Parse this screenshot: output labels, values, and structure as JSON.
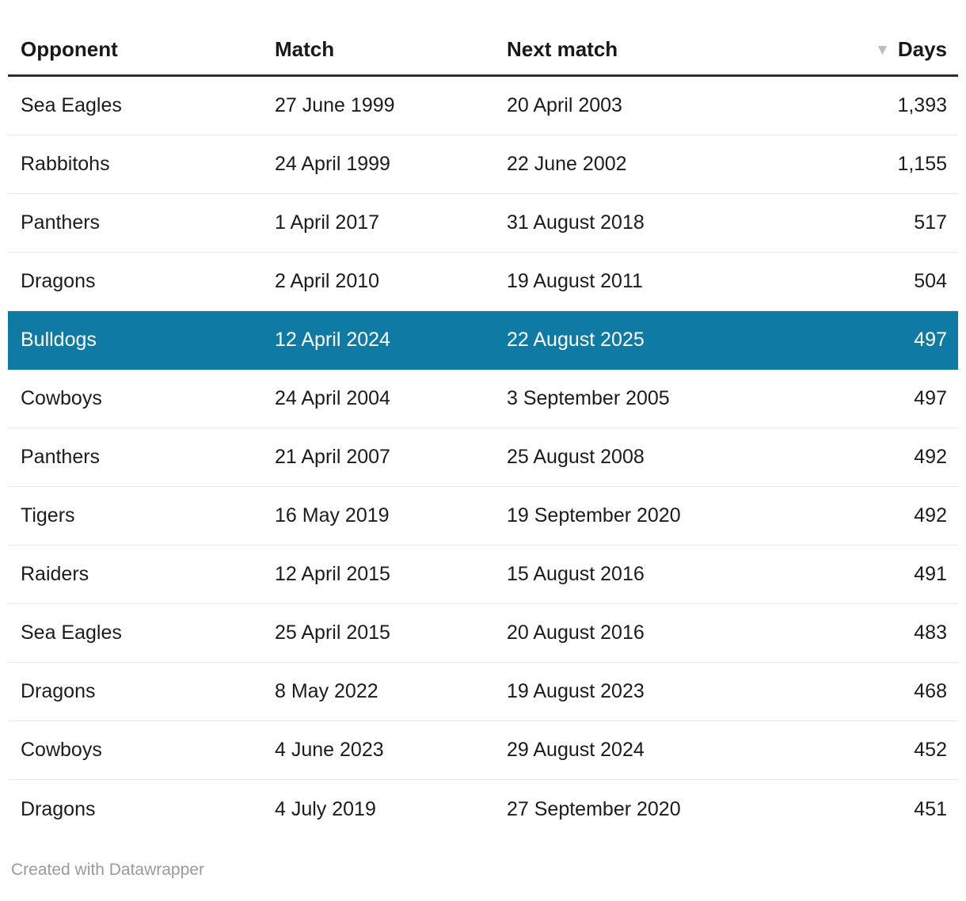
{
  "chart_data": {
    "type": "table",
    "columns": [
      "Opponent",
      "Match",
      "Next match",
      "Days"
    ],
    "sort": {
      "column": "Days",
      "direction": "desc"
    },
    "rows": [
      {
        "opponent": "Sea Eagles",
        "match": "27 June 1999",
        "next_match": "20 April 2003",
        "days": "1,393",
        "highlighted": false
      },
      {
        "opponent": "Rabbitohs",
        "match": "24 April 1999",
        "next_match": "22 June 2002",
        "days": "1,155",
        "highlighted": false
      },
      {
        "opponent": "Panthers",
        "match": "1 April 2017",
        "next_match": "31 August 2018",
        "days": "517",
        "highlighted": false
      },
      {
        "opponent": "Dragons",
        "match": "2 April 2010",
        "next_match": "19 August 2011",
        "days": "504",
        "highlighted": false
      },
      {
        "opponent": "Bulldogs",
        "match": "12 April 2024",
        "next_match": "22 August 2025",
        "days": "497",
        "highlighted": true
      },
      {
        "opponent": "Cowboys",
        "match": "24 April 2004",
        "next_match": "3 September 2005",
        "days": "497",
        "highlighted": false
      },
      {
        "opponent": "Panthers",
        "match": "21 April 2007",
        "next_match": "25 August 2008",
        "days": "492",
        "highlighted": false
      },
      {
        "opponent": "Tigers",
        "match": "16 May 2019",
        "next_match": "19 September 2020",
        "days": "492",
        "highlighted": false
      },
      {
        "opponent": "Raiders",
        "match": "12 April 2015",
        "next_match": "15 August 2016",
        "days": "491",
        "highlighted": false
      },
      {
        "opponent": "Sea Eagles",
        "match": "25 April 2015",
        "next_match": "20 August 2016",
        "days": "483",
        "highlighted": false
      },
      {
        "opponent": "Dragons",
        "match": "8 May 2022",
        "next_match": "19 August 2023",
        "days": "468",
        "highlighted": false
      },
      {
        "opponent": "Cowboys",
        "match": "4 June 2023",
        "next_match": "29 August 2024",
        "days": "452",
        "highlighted": false
      },
      {
        "opponent": "Dragons",
        "match": "4 July 2019",
        "next_match": "27 September 2020",
        "days": "451",
        "highlighted": false
      }
    ]
  },
  "icons": {
    "sort_desc_icon": "▼"
  },
  "footer": {
    "text": "Created with Datawrapper"
  },
  "colors": {
    "highlight_bg": "#0f7ba4",
    "highlight_text": "#ffffff",
    "text": "#1c1c1c",
    "header_border": "#2e2e2e",
    "row_border": "#e8e8e8",
    "footer_text": "#9a9a9a",
    "sort_arrow": "#bdbdbd",
    "bg": "#ffffff"
  }
}
